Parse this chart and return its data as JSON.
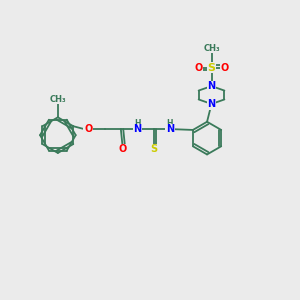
{
  "background_color": "#ebebeb",
  "colors": {
    "carbon": "#3a7a5a",
    "nitrogen": "#0000ff",
    "oxygen": "#ff0000",
    "sulfur": "#cccc00",
    "bond": "#3a7a5a"
  },
  "layout": {
    "xlim": [
      0,
      10
    ],
    "ylim": [
      0,
      10
    ]
  }
}
